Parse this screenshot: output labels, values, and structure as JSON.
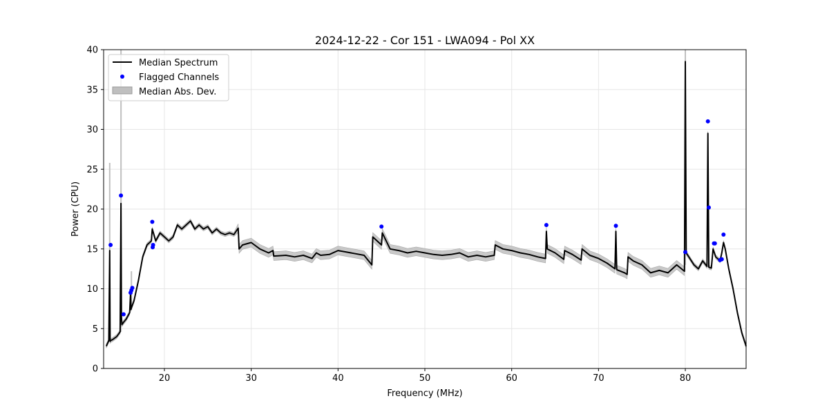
{
  "chart_data": {
    "type": "line",
    "title": "2024-12-22 - Cor 151 - LWA094 - Pol XX",
    "xlabel": "Frequency (MHz)",
    "ylabel": "Power (CPU)",
    "xlim": [
      13,
      87
    ],
    "ylim": [
      0,
      40
    ],
    "xticks": [
      20,
      30,
      40,
      50,
      60,
      70,
      80
    ],
    "yticks": [
      0,
      5,
      10,
      15,
      20,
      25,
      30,
      35,
      40
    ],
    "grid": true,
    "legend_position": "upper-left",
    "legend": [
      "Median Spectrum",
      "Flagged Channels",
      "Median Abs. Dev."
    ],
    "colors": {
      "median": "#000000",
      "flagged": "#0000ff",
      "band": "#bfbfbf",
      "grid": "#e6e6e6"
    },
    "series": [
      {
        "name": "Median Spectrum",
        "x": [
          13.3,
          13.6,
          13.7,
          13.75,
          13.8,
          14.0,
          14.5,
          14.9,
          15.0,
          15.05,
          15.1,
          15.3,
          15.6,
          16.0,
          16.1,
          16.15,
          16.2,
          16.5,
          17.0,
          17.5,
          18.0,
          18.5,
          18.6,
          19.0,
          19.5,
          20.0,
          20.5,
          21.0,
          21.5,
          22.0,
          22.5,
          23.0,
          23.5,
          24.0,
          24.5,
          25.0,
          25.5,
          26.0,
          26.5,
          27.0,
          27.5,
          28.0,
          28.5,
          28.6,
          29.0,
          30.0,
          31.0,
          32.0,
          32.5,
          32.6,
          34.0,
          35.0,
          36.0,
          37.0,
          37.5,
          38.0,
          39.0,
          40.0,
          41.0,
          42.0,
          43.0,
          43.9,
          44.0,
          45.0,
          45.1,
          46.0,
          47.0,
          48.0,
          49.0,
          50.0,
          51.0,
          52.0,
          53.0,
          54.0,
          55.0,
          56.0,
          57.0,
          58.0,
          58.1,
          59.0,
          60.0,
          61.0,
          62.0,
          63.0,
          63.9,
          64.0,
          64.1,
          65.0,
          66.0,
          66.1,
          67.0,
          68.0,
          68.1,
          69.0,
          70.0,
          71.0,
          71.9,
          72.0,
          72.1,
          73.0,
          73.3,
          73.4,
          74.0,
          75.0,
          76.0,
          77.0,
          78.0,
          79.0,
          79.9,
          80.0,
          80.1,
          81.0,
          81.5,
          82.0,
          82.5,
          82.6,
          82.7,
          83.0,
          83.2,
          83.5,
          84.0,
          84.2,
          84.4,
          84.6,
          85.0,
          85.5,
          86.0,
          86.5,
          87.0
        ],
        "values": [
          2.8,
          3.5,
          14.8,
          3.4,
          3.5,
          3.6,
          4.0,
          4.6,
          20.7,
          6.5,
          5.5,
          5.8,
          6.2,
          7.0,
          9.5,
          7.4,
          7.6,
          8.5,
          11.0,
          14.0,
          15.5,
          16.0,
          17.5,
          16.0,
          17.0,
          16.5,
          16.0,
          16.5,
          18.0,
          17.5,
          18.0,
          18.5,
          17.5,
          18.0,
          17.5,
          17.8,
          17.0,
          17.5,
          17.0,
          16.8,
          17.0,
          16.8,
          17.6,
          15.0,
          15.5,
          15.8,
          15.0,
          14.5,
          14.8,
          14.1,
          14.2,
          14.0,
          14.2,
          13.8,
          14.5,
          14.2,
          14.3,
          14.8,
          14.6,
          14.4,
          14.2,
          13.0,
          16.5,
          15.5,
          17.0,
          15.0,
          14.8,
          14.5,
          14.7,
          14.5,
          14.3,
          14.2,
          14.3,
          14.5,
          14.0,
          14.2,
          14.0,
          14.2,
          15.5,
          15.0,
          14.8,
          14.5,
          14.3,
          14.0,
          13.8,
          17.2,
          15.0,
          14.5,
          13.7,
          14.8,
          14.3,
          13.6,
          15.0,
          14.2,
          13.8,
          13.2,
          12.5,
          17.2,
          12.4,
          12.0,
          11.8,
          14.0,
          13.5,
          13.0,
          12.0,
          12.3,
          12.0,
          13.0,
          12.2,
          38.5,
          14.5,
          13.0,
          12.5,
          13.5,
          12.8,
          29.5,
          12.7,
          12.6,
          15.0,
          14.0,
          13.5,
          14.5,
          15.8,
          15.0,
          12.5,
          10.0,
          7.0,
          4.5,
          2.8
        ]
      },
      {
        "name": "Flagged Channels",
        "x": [
          13.8,
          15.0,
          15.3,
          16.1,
          16.2,
          16.3,
          18.6,
          18.65,
          18.7,
          45.0,
          64.0,
          72.0,
          80.0,
          82.6,
          82.7,
          83.3,
          83.4,
          84.0,
          84.2,
          84.4
        ],
        "values": [
          15.5,
          21.7,
          6.8,
          9.5,
          9.8,
          10.1,
          18.4,
          15.2,
          15.5,
          17.8,
          18.0,
          17.9,
          14.6,
          31.0,
          20.2,
          15.7,
          15.7,
          13.6,
          13.7,
          16.8
        ]
      },
      {
        "name": "Median Abs. Dev.",
        "spikes": [
          {
            "x": 13.7,
            "values": [
              3.4,
              25.8
            ]
          },
          {
            "x": 15.0,
            "values": [
              4.6,
              40.0
            ]
          },
          {
            "x": 16.2,
            "values": [
              7.4,
              12.2
            ]
          },
          {
            "x": 80.0,
            "values": [
              13.0,
              40.0
            ]
          }
        ]
      }
    ]
  }
}
